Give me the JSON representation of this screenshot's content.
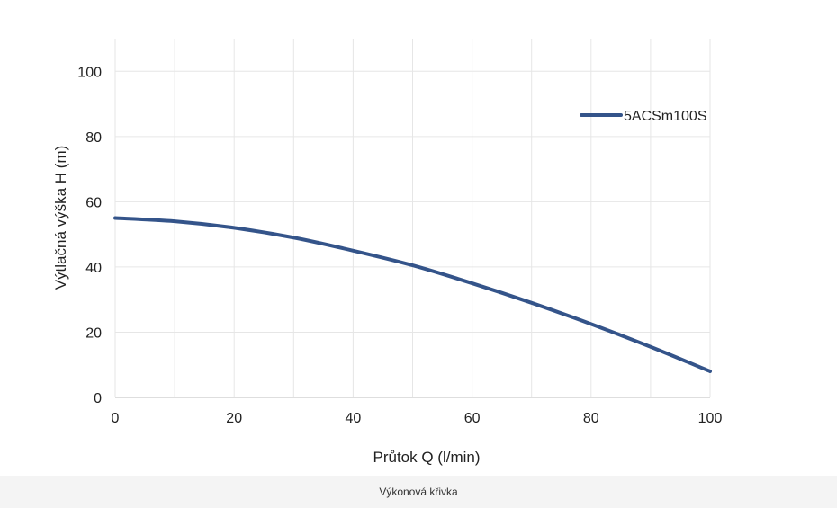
{
  "chart_data": {
    "type": "line",
    "xlabel": "Průtok Q (l/min)",
    "ylabel": "Výtlačná výška H (m)",
    "xlim": [
      0,
      100
    ],
    "ylim": [
      0,
      110
    ],
    "xticks": [
      0,
      20,
      40,
      60,
      80,
      100
    ],
    "yticks": [
      0,
      20,
      40,
      60,
      80,
      100
    ],
    "grid": true,
    "legend_position": "top-right",
    "series": [
      {
        "name": "5ACSm100S",
        "color": "#34548a",
        "x": [
          0,
          10,
          20,
          30,
          40,
          50,
          60,
          70,
          80,
          90,
          100
        ],
        "y": [
          55,
          54,
          52,
          49,
          45,
          40.5,
          35,
          29,
          22.5,
          15.5,
          8
        ]
      }
    ]
  },
  "caption": "Výkonová křivka"
}
